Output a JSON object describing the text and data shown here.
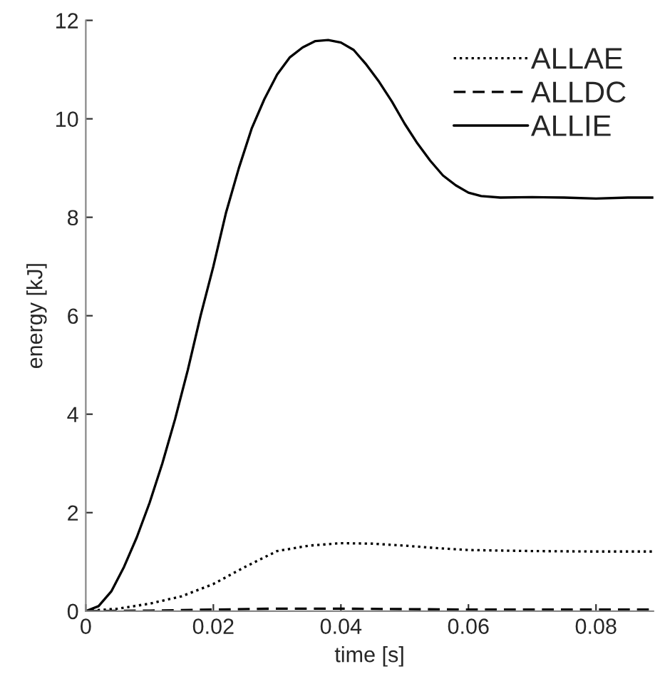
{
  "chart_data": {
    "type": "line",
    "xlabel": "time [s]",
    "ylabel": "energy [kJ]",
    "xlim": [
      0,
      0.089
    ],
    "ylim": [
      0,
      12
    ],
    "xticks": [
      0,
      0.02,
      0.04,
      0.06,
      0.08
    ],
    "yticks": [
      0,
      2,
      4,
      6,
      8,
      10,
      12
    ],
    "grid": false,
    "legend": "top right",
    "marker": "none",
    "series": [
      {
        "name": "ALLAE",
        "color": "#000000",
        "line_style": "dotted",
        "x": [
          0,
          0.005,
          0.01,
          0.015,
          0.02,
          0.025,
          0.03,
          0.035,
          0.04,
          0.045,
          0.05,
          0.055,
          0.06,
          0.07,
          0.08,
          0.089
        ],
        "values": [
          0,
          0.05,
          0.15,
          0.3,
          0.55,
          0.9,
          1.22,
          1.33,
          1.38,
          1.37,
          1.33,
          1.28,
          1.24,
          1.22,
          1.21,
          1.21
        ]
      },
      {
        "name": "ALLDC",
        "color": "#000000",
        "line_style": "dashed",
        "x": [
          0,
          0.01,
          0.02,
          0.03,
          0.04,
          0.05,
          0.06,
          0.07,
          0.08,
          0.089
        ],
        "values": [
          0,
          0.01,
          0.03,
          0.05,
          0.05,
          0.04,
          0.03,
          0.03,
          0.03,
          0.03
        ]
      },
      {
        "name": "ALLIE",
        "color": "#000000",
        "line_style": "solid",
        "x": [
          0,
          0.002,
          0.004,
          0.006,
          0.008,
          0.01,
          0.012,
          0.014,
          0.016,
          0.018,
          0.02,
          0.022,
          0.024,
          0.026,
          0.028,
          0.03,
          0.032,
          0.034,
          0.036,
          0.038,
          0.04,
          0.042,
          0.044,
          0.046,
          0.048,
          0.05,
          0.052,
          0.054,
          0.056,
          0.058,
          0.06,
          0.062,
          0.065,
          0.07,
          0.075,
          0.08,
          0.085,
          0.089
        ],
        "values": [
          0,
          0.1,
          0.4,
          0.9,
          1.5,
          2.2,
          3.0,
          3.9,
          4.9,
          6.0,
          7.0,
          8.1,
          9.0,
          9.8,
          10.4,
          10.9,
          11.25,
          11.45,
          11.58,
          11.6,
          11.55,
          11.4,
          11.1,
          10.75,
          10.35,
          9.9,
          9.5,
          9.15,
          8.85,
          8.65,
          8.5,
          8.43,
          8.4,
          8.41,
          8.4,
          8.38,
          8.4,
          8.4
        ]
      }
    ]
  }
}
